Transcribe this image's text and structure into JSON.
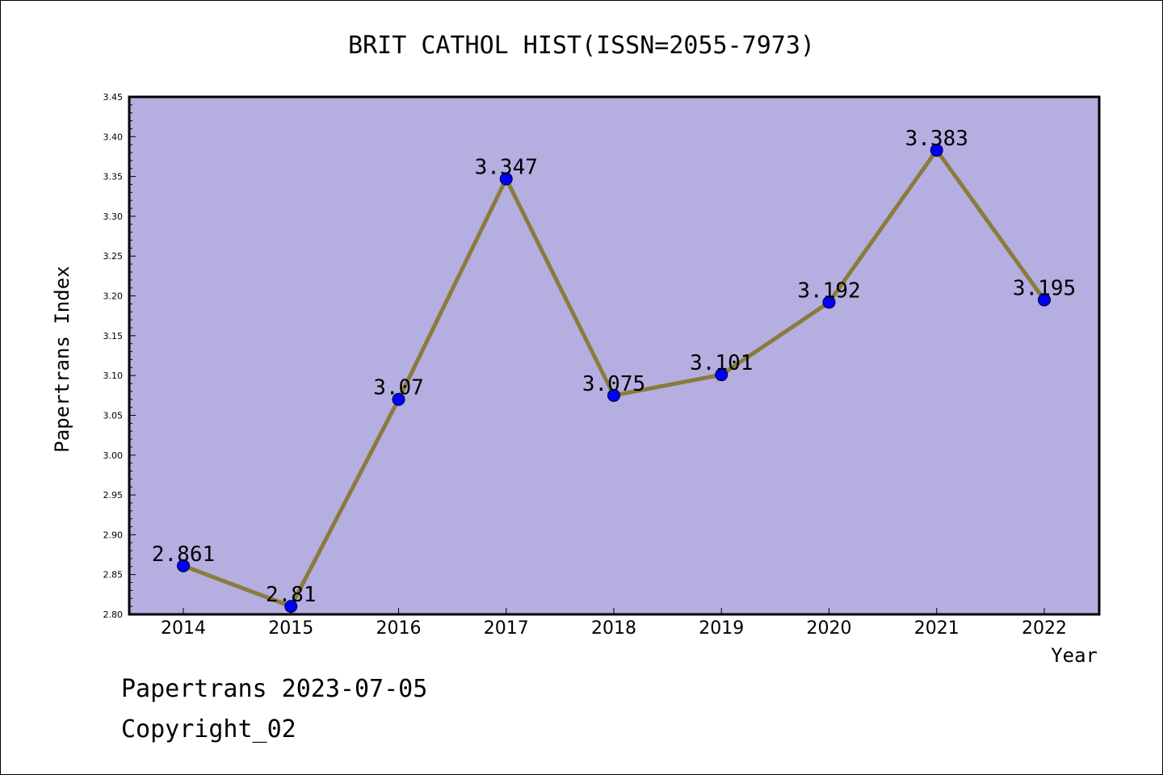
{
  "chart_data": {
    "type": "line",
    "title": "BRIT CATHOL HIST(ISSN=2055-7973)",
    "xlabel": "Year",
    "ylabel": "Papertrans Index",
    "categories": [
      "2014",
      "2015",
      "2016",
      "2017",
      "2018",
      "2019",
      "2020",
      "2021",
      "2022"
    ],
    "values": [
      2.861,
      2.81,
      3.07,
      3.347,
      3.075,
      3.101,
      3.192,
      3.383,
      3.195
    ],
    "data_labels": [
      "2.861",
      "2.81",
      "3.07",
      "3.347",
      "3.075",
      "3.101",
      "3.192",
      "3.383",
      "3.195"
    ],
    "ylim": [
      2.8,
      3.45
    ],
    "yticks": [
      "2.80",
      "2.85",
      "2.90",
      "2.95",
      "3.00",
      "3.05",
      "3.10",
      "3.15",
      "3.20",
      "3.25",
      "3.30",
      "3.35",
      "3.40",
      "3.45"
    ],
    "colors": {
      "plot_background": "#b5aee1",
      "line": "#8b7b3c",
      "marker": "#0000ff"
    }
  },
  "footer": {
    "line1": "Papertrans 2023-07-05",
    "line2": "Copyright_02"
  }
}
